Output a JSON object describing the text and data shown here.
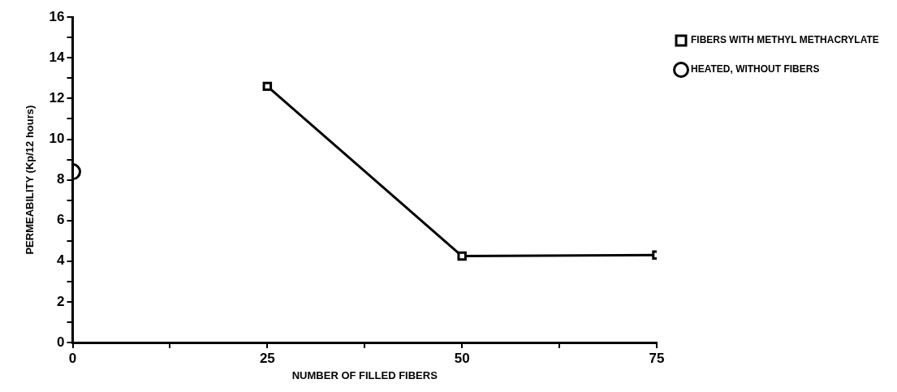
{
  "chart_data": {
    "type": "line",
    "xlabel": "NUMBER OF FILLED FIBERS",
    "ylabel": "PERMEABILITY (Kp/12 hours)",
    "xlim": [
      0,
      75
    ],
    "xticks": [
      0,
      {
        "value": 12.5,
        "label": null
      },
      25,
      {
        "value": 37.5,
        "label": null
      },
      50,
      {
        "value": 62.5,
        "label": null
      },
      75
    ],
    "ylim": [
      0,
      16
    ],
    "yticks": [
      0,
      {
        "value": 1,
        "label": null
      },
      2,
      {
        "value": 3,
        "label": null
      },
      4,
      {
        "value": 5,
        "label": null
      },
      6,
      {
        "value": 7,
        "label": null
      },
      8,
      {
        "value": 9,
        "label": null
      },
      10,
      {
        "value": 11,
        "label": null
      },
      12,
      {
        "value": 13,
        "label": null
      },
      14,
      {
        "value": 15,
        "label": null
      },
      16
    ],
    "grid": false,
    "legend": "right",
    "series": [
      {
        "name": "FIBERS WITH METHYL METHACRYLATE",
        "type": "line",
        "color": "#000000",
        "marker": "square",
        "x": [
          25,
          50,
          75
        ],
        "values": [
          12.6,
          4.25,
          4.3
        ]
      },
      {
        "name": "HEATED, WITHOUT FIBERS",
        "type": "scatter",
        "color": "#000000",
        "marker": "circle",
        "x": [
          0
        ],
        "values": [
          8.4
        ]
      }
    ]
  }
}
